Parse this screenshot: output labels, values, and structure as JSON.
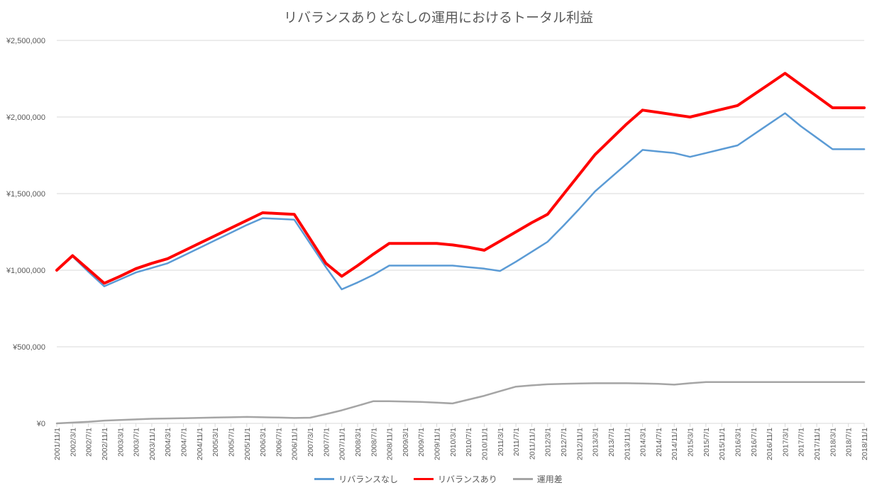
{
  "chart_data": {
    "type": "line",
    "title": "リバランスありとなしの運用におけるトータル利益",
    "xlabel": "",
    "ylabel": "",
    "ylim": [
      0,
      2500000
    ],
    "y_ticks": [
      "¥0",
      "¥500,000",
      "¥1,000,000",
      "¥1,500,000",
      "¥2,000,000",
      "¥2,500,000"
    ],
    "grid": true,
    "legend_position": "bottom",
    "x": [
      "2001/11/1",
      "2002/3/1",
      "2002/7/1",
      "2002/11/1",
      "2003/3/1",
      "2003/7/1",
      "2003/11/1",
      "2004/3/1",
      "2004/7/1",
      "2004/11/1",
      "2005/3/1",
      "2005/7/1",
      "2005/11/1",
      "2006/3/1",
      "2006/7/1",
      "2006/11/1",
      "2007/3/1",
      "2007/7/1",
      "2007/11/1",
      "2008/3/1",
      "2008/7/1",
      "2008/11/1",
      "2009/3/1",
      "2009/7/1",
      "2009/11/1",
      "2010/3/1",
      "2010/7/1",
      "2010/11/1",
      "2011/3/1",
      "2011/7/1",
      "2011/11/1",
      "2012/3/1",
      "2012/7/1",
      "2012/11/1",
      "2013/3/1",
      "2013/7/1",
      "2013/11/1",
      "2014/3/1",
      "2014/7/1",
      "2014/11/1",
      "2015/3/1",
      "2015/7/1",
      "2015/11/1",
      "2016/3/1",
      "2016/7/1",
      "2016/11/1",
      "2017/3/1",
      "2017/7/1",
      "2017/11/1",
      "2018/3/1",
      "2018/7/1",
      "2018/11/1"
    ],
    "series": [
      {
        "name": "リバランスなし",
        "color": "#5b9bd5",
        "width": 2.5,
        "values": [
          1000000,
          1090000,
          990000,
          895000,
          940000,
          985000,
          1015000,
          1045000,
          1095000,
          1145000,
          1195000,
          1245000,
          1295000,
          1340000,
          1335000,
          1330000,
          1175000,
          1020000,
          875000,
          920000,
          970000,
          1030000,
          1030000,
          1030000,
          1030000,
          1030000,
          1020000,
          1010000,
          995000,
          1055000,
          1120000,
          1185000,
          1290000,
          1400000,
          1515000,
          1605000,
          1695000,
          1785000,
          1775000,
          1765000,
          1740000,
          1765000,
          1790000,
          1815000,
          1885000,
          1955000,
          2025000,
          1940000,
          1865000,
          1790000,
          1790000,
          1790000
        ]
      },
      {
        "name": "リバランスあり",
        "color": "#ff0000",
        "width": 4,
        "values": [
          1000000,
          1095000,
          1005000,
          915000,
          960000,
          1010000,
          1045000,
          1075000,
          1125000,
          1175000,
          1225000,
          1275000,
          1325000,
          1375000,
          1370000,
          1365000,
          1205000,
          1045000,
          960000,
          1030000,
          1105000,
          1175000,
          1175000,
          1175000,
          1175000,
          1165000,
          1150000,
          1130000,
          1190000,
          1250000,
          1310000,
          1365000,
          1495000,
          1625000,
          1755000,
          1855000,
          1955000,
          2045000,
          2030000,
          2015000,
          2000000,
          2025000,
          2050000,
          2075000,
          2145000,
          2215000,
          2285000,
          2210000,
          2135000,
          2060000,
          2060000,
          2060000
        ]
      },
      {
        "name": "運用差",
        "color": "#a5a5a5",
        "width": 2.5,
        "values": [
          0,
          5000,
          10000,
          18000,
          22000,
          26000,
          30000,
          32000,
          34000,
          36000,
          38000,
          40000,
          42000,
          40000,
          38000,
          35000,
          37000,
          60000,
          85000,
          115000,
          145000,
          145000,
          142000,
          140000,
          135000,
          130000,
          155000,
          180000,
          210000,
          240000,
          248000,
          255000,
          258000,
          260000,
          262000,
          262000,
          262000,
          260000,
          258000,
          253000,
          262000,
          270000,
          270000,
          270000,
          270000,
          270000,
          270000,
          270000,
          270000,
          270000,
          270000,
          270000
        ]
      }
    ]
  }
}
